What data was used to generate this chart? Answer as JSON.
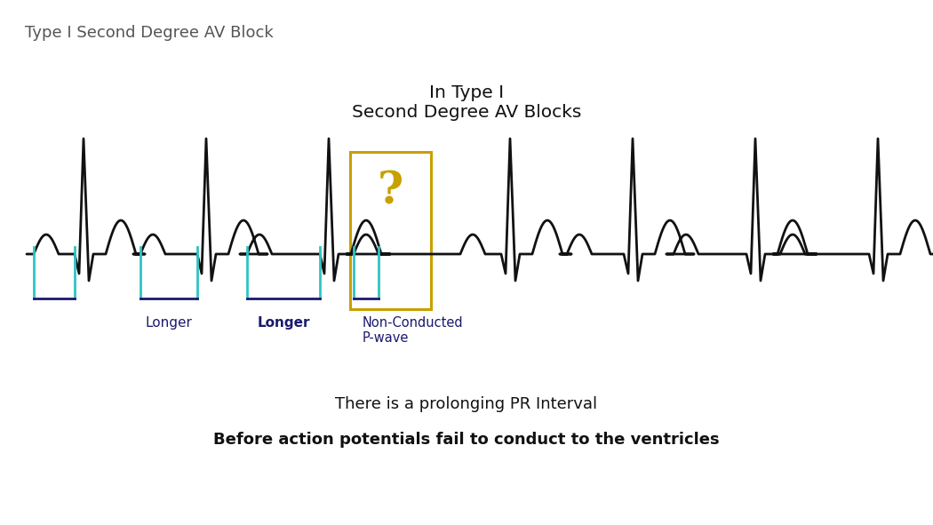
{
  "title_top_left": "Type I Second Degree AV Block",
  "title_center": "In Type I\nSecond Degree AV Blocks",
  "bottom_text1": "There is a prolonging PR Interval",
  "bottom_text2": "Before action potentials fail to conduct to the ventricles",
  "label1": "Longer",
  "label2": "Longer",
  "label3": "Non-Conducted\nP-wave",
  "question_mark": "?",
  "bg_color": "#ffffff",
  "ecg_color": "#111111",
  "teal_color": "#2EC4C4",
  "navy_color": "#1a1a6e",
  "gold_color": "#C8A000",
  "box_color": "#C8A000",
  "title_color": "#555555",
  "bottom_text_color": "#111111",
  "figw": 10.5,
  "figh": 5.91,
  "dpi": 100
}
